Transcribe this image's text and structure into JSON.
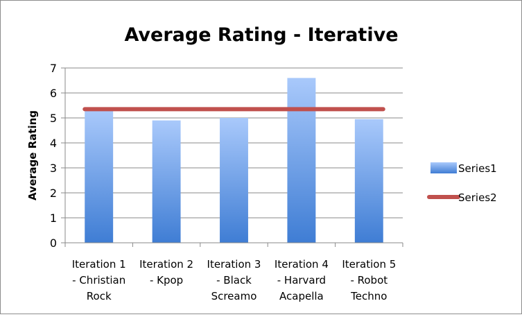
{
  "chart_data": {
    "type": "bar",
    "title": "Average Rating - Iterative",
    "xlabel": "",
    "ylabel": "Average Rating",
    "ylim": [
      0,
      7
    ],
    "yticks": [
      "0",
      "1",
      "2",
      "3",
      "4",
      "5",
      "6",
      "7"
    ],
    "grid": true,
    "legend_position": "right",
    "categories": [
      [
        "Iteration 1",
        "- Christian",
        "Rock"
      ],
      [
        "Iteration 2",
        "- Kpop"
      ],
      [
        "Iteration 3",
        "- Black",
        "Screamo"
      ],
      [
        "Iteration 4",
        "- Harvard",
        "Acapella"
      ],
      [
        "Iteration 5",
        "- Robot",
        "Techno"
      ]
    ],
    "series": [
      {
        "name": "Series1",
        "type": "bar",
        "color": "#5b8fd9",
        "values": [
          5.3,
          4.9,
          5.0,
          6.6,
          4.95
        ]
      },
      {
        "name": "Series2",
        "type": "line",
        "color": "#c0504d",
        "values": [
          5.35,
          5.35,
          5.35,
          5.35,
          5.35
        ]
      }
    ]
  }
}
